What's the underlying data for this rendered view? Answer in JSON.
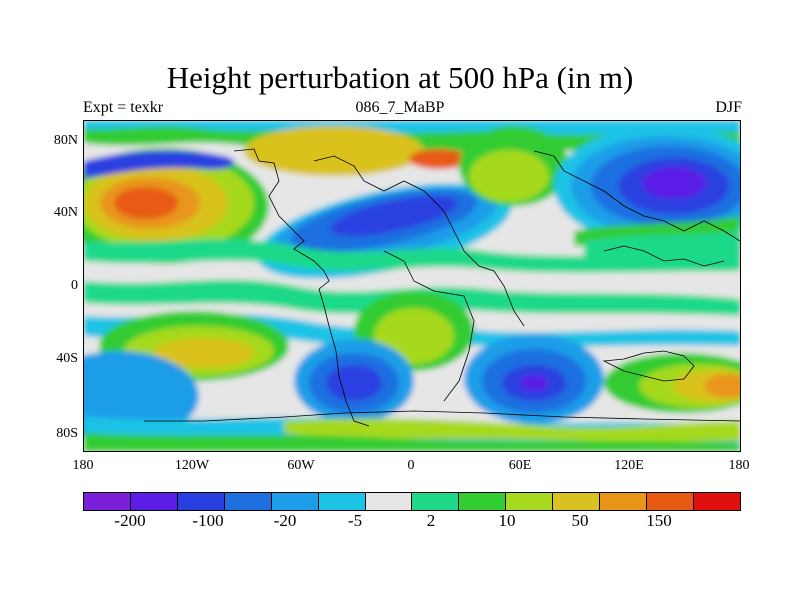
{
  "title": "Height perturbation at 500 hPa (in m)",
  "subtitle_left": "Expt = texkr",
  "subtitle_center": "086_7_MaBP",
  "subtitle_right": "DJF",
  "lat_ticks": [
    "80N",
    "40N",
    "0",
    "40S",
    "80S"
  ],
  "lon_ticks": [
    "180",
    "120W",
    "60W",
    "0",
    "60E",
    "120E",
    "180"
  ],
  "colorbar": {
    "colors": [
      "#7b1fd9",
      "#5a1ee6",
      "#2a3fe0",
      "#1e6fe0",
      "#1e9de8",
      "#1bc3e6",
      "#e6e6e6",
      "#1fd98a",
      "#33cc33",
      "#a6d91f",
      "#d9c21f",
      "#e8961a",
      "#e85a14",
      "#e01010"
    ],
    "labels": [
      "-200",
      "-100",
      "-20",
      "-5",
      "2",
      "10",
      "50",
      "150"
    ]
  }
}
